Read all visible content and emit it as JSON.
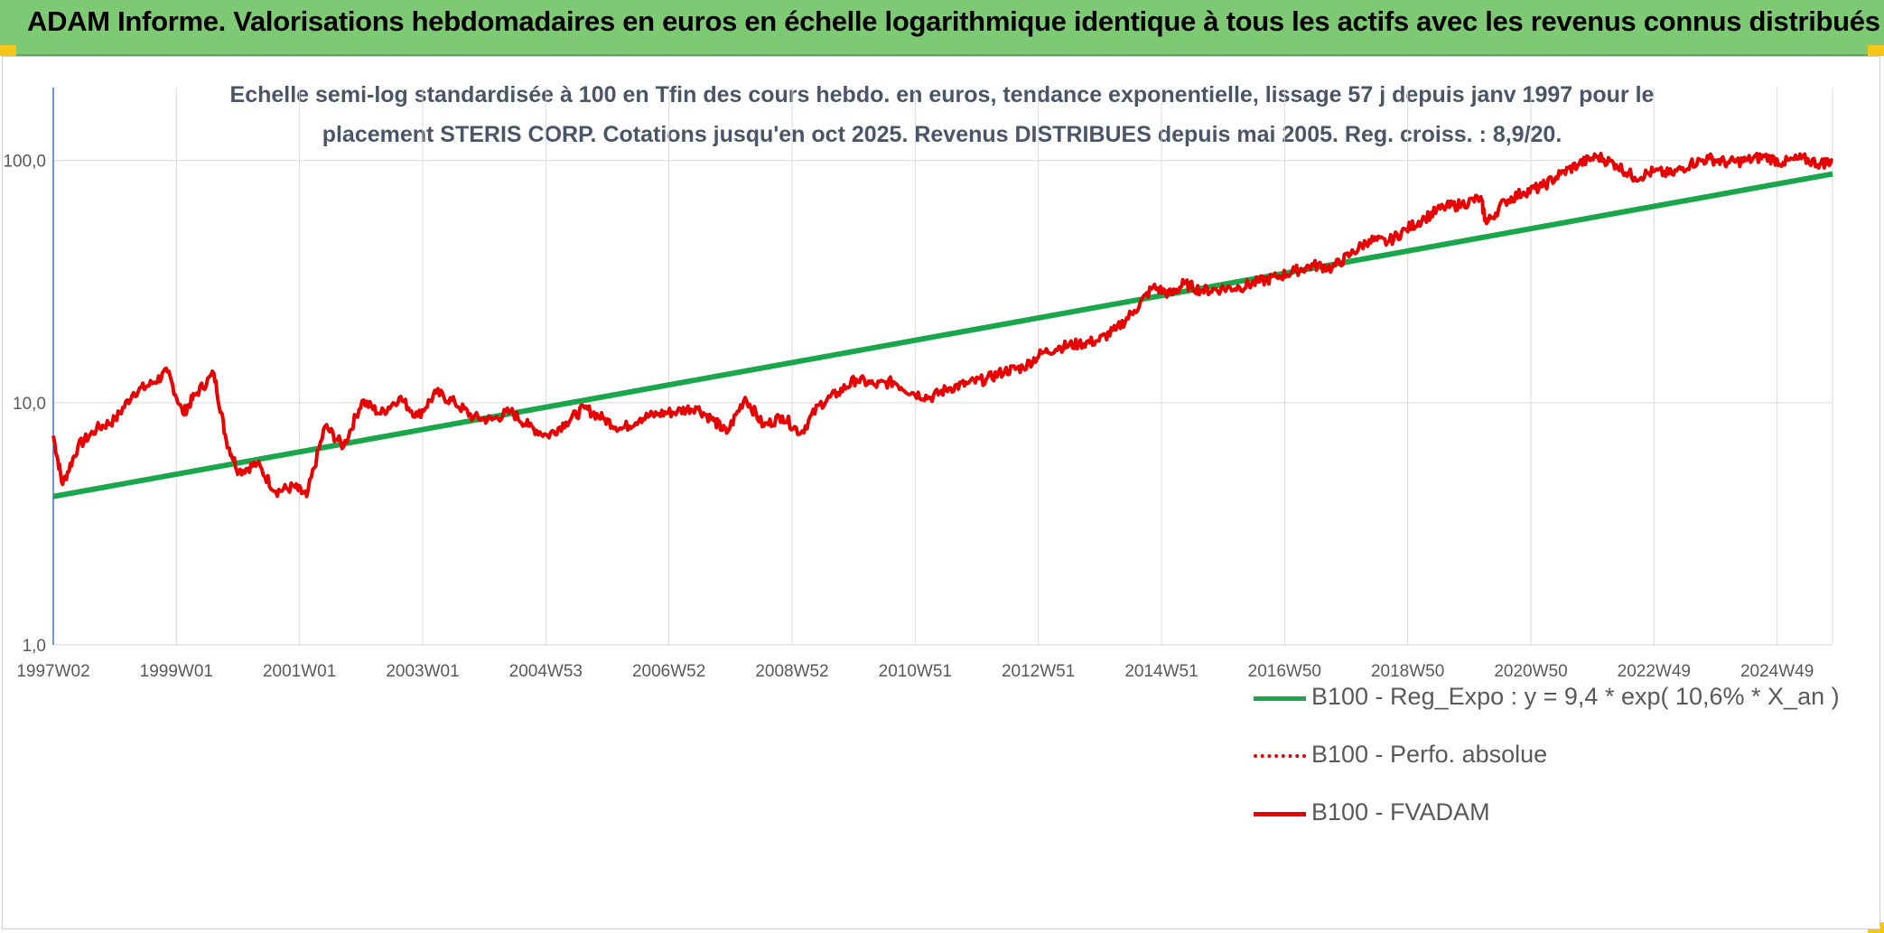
{
  "header": {
    "title": "ADAM Informe. Valorisations hebdomadaires en euros en échelle logarithmique identique à tous les actifs avec les revenus connus distribués"
  },
  "chart": {
    "title_line1": "Echelle semi-log standardisée à 100 en Tfin des cours hebdo. en euros, tendance exponentielle, lissage 57 j depuis janv 1997 pour le",
    "title_line2": "placement STERIS CORP. Cotations jusqu'en oct 2025. Revenus DISTRIBUES depuis mai 2005. Reg. croiss. : 8,9/20."
  },
  "legend": [
    {
      "label": "B100 - Reg_Expo : y = 9,4 * exp( 10,6% *  X_an )",
      "color": "#1aa64a",
      "style": "solid"
    },
    {
      "label": "B100 - Perfo. absolue",
      "color": "#e60000",
      "style": "dotted"
    },
    {
      "label": "B100 - FVADAM",
      "color": "#e60000",
      "style": "solid"
    }
  ],
  "colors": {
    "accent_green": "#7ec974",
    "trend": "#1aa64a",
    "price": "#e60000",
    "corner": "#f5c518"
  },
  "chart_data": {
    "type": "line",
    "scale": "log",
    "ylim": [
      1,
      200
    ],
    "y_ticks": [
      "1,0",
      "10,0",
      "100,0"
    ],
    "x_ticks": [
      "1997W02",
      "1999W01",
      "2001W01",
      "2003W01",
      "2004W53",
      "2006W52",
      "2008W52",
      "2010W51",
      "2012W51",
      "2014W51",
      "2016W50",
      "2018W50",
      "2020W50",
      "2022W49",
      "2024W49"
    ],
    "xlim": [
      1997.0,
      2025.8
    ],
    "grid": true,
    "legend_position": "bottom-right",
    "series": [
      {
        "name": "B100 - Reg_Expo : y = 9,4 * exp( 10,6% *  X_an )",
        "color": "#1aa64a",
        "x": [
          1997.0,
          2025.8
        ],
        "y": [
          4.1,
          88
        ]
      },
      {
        "name": "B100 - FVADAM",
        "color": "#e60000",
        "x": [
          1997.0,
          1997.15,
          1997.4,
          1997.7,
          1998.0,
          1998.3,
          1998.6,
          1998.85,
          1999.1,
          1999.3,
          1999.6,
          1999.8,
          2000.0,
          2000.3,
          2000.6,
          2000.9,
          2001.1,
          2001.4,
          2001.7,
          2002.0,
          2002.3,
          2002.6,
          2002.9,
          2003.2,
          2003.5,
          2003.8,
          2004.1,
          2004.4,
          2004.7,
          2005.0,
          2005.3,
          2005.6,
          2005.9,
          2006.2,
          2006.5,
          2006.8,
          2007.1,
          2007.4,
          2007.7,
          2007.9,
          2008.2,
          2008.5,
          2008.8,
          2009.1,
          2009.4,
          2009.7,
          2010.0,
          2010.3,
          2010.6,
          2010.9,
          2011.2,
          2011.5,
          2011.8,
          2012.1,
          2012.4,
          2012.7,
          2013.0,
          2013.3,
          2013.6,
          2013.9,
          2014.2,
          2014.5,
          2014.8,
          2015.1,
          2015.3,
          2015.6,
          2015.9,
          2016.2,
          2016.5,
          2016.8,
          2017.1,
          2017.4,
          2017.7,
          2018.0,
          2018.3,
          2018.6,
          2018.9,
          2019.2,
          2019.5,
          2019.8,
          2020.1,
          2020.2,
          2020.5,
          2020.8,
          2021.1,
          2021.4,
          2021.7,
          2022.0,
          2022.3,
          2022.6,
          2022.9,
          2023.2,
          2023.5,
          2023.8,
          2024.1,
          2024.4,
          2024.7,
          2025.0,
          2025.3,
          2025.6,
          2025.8
        ],
        "y": [
          7.3,
          4.6,
          6.6,
          7.8,
          8.5,
          11.0,
          12.0,
          13.4,
          9.0,
          10.8,
          13.2,
          7.0,
          5.2,
          5.6,
          4.3,
          4.5,
          4.1,
          8.0,
          6.6,
          10.2,
          9.0,
          10.5,
          8.8,
          11.0,
          10.0,
          8.7,
          8.5,
          9.2,
          8.0,
          7.3,
          8.3,
          9.5,
          8.6,
          7.8,
          8.6,
          9.0,
          9.2,
          9.6,
          8.4,
          7.5,
          10.5,
          8.0,
          8.8,
          7.5,
          9.8,
          11.0,
          12.5,
          11.8,
          12.2,
          11.0,
          10.5,
          11.5,
          12.0,
          12.5,
          13.5,
          14.0,
          16.0,
          17.0,
          17.5,
          18.0,
          20.0,
          24.0,
          30.0,
          28.0,
          31.0,
          29.0,
          29.5,
          30.0,
          31.5,
          33.0,
          35.0,
          37.0,
          36.0,
          41.0,
          47.0,
          46.0,
          52.0,
          58.0,
          64.0,
          66.0,
          70.0,
          55.0,
          68.0,
          74.0,
          78.0,
          88.0,
          97.0,
          104.0,
          96.0,
          85.0,
          90.0,
          88.0,
          97.0,
          102.0,
          98.0,
          100.0,
          104.0,
          98.0,
          102.0,
          97.0,
          100.0
        ]
      }
    ]
  }
}
